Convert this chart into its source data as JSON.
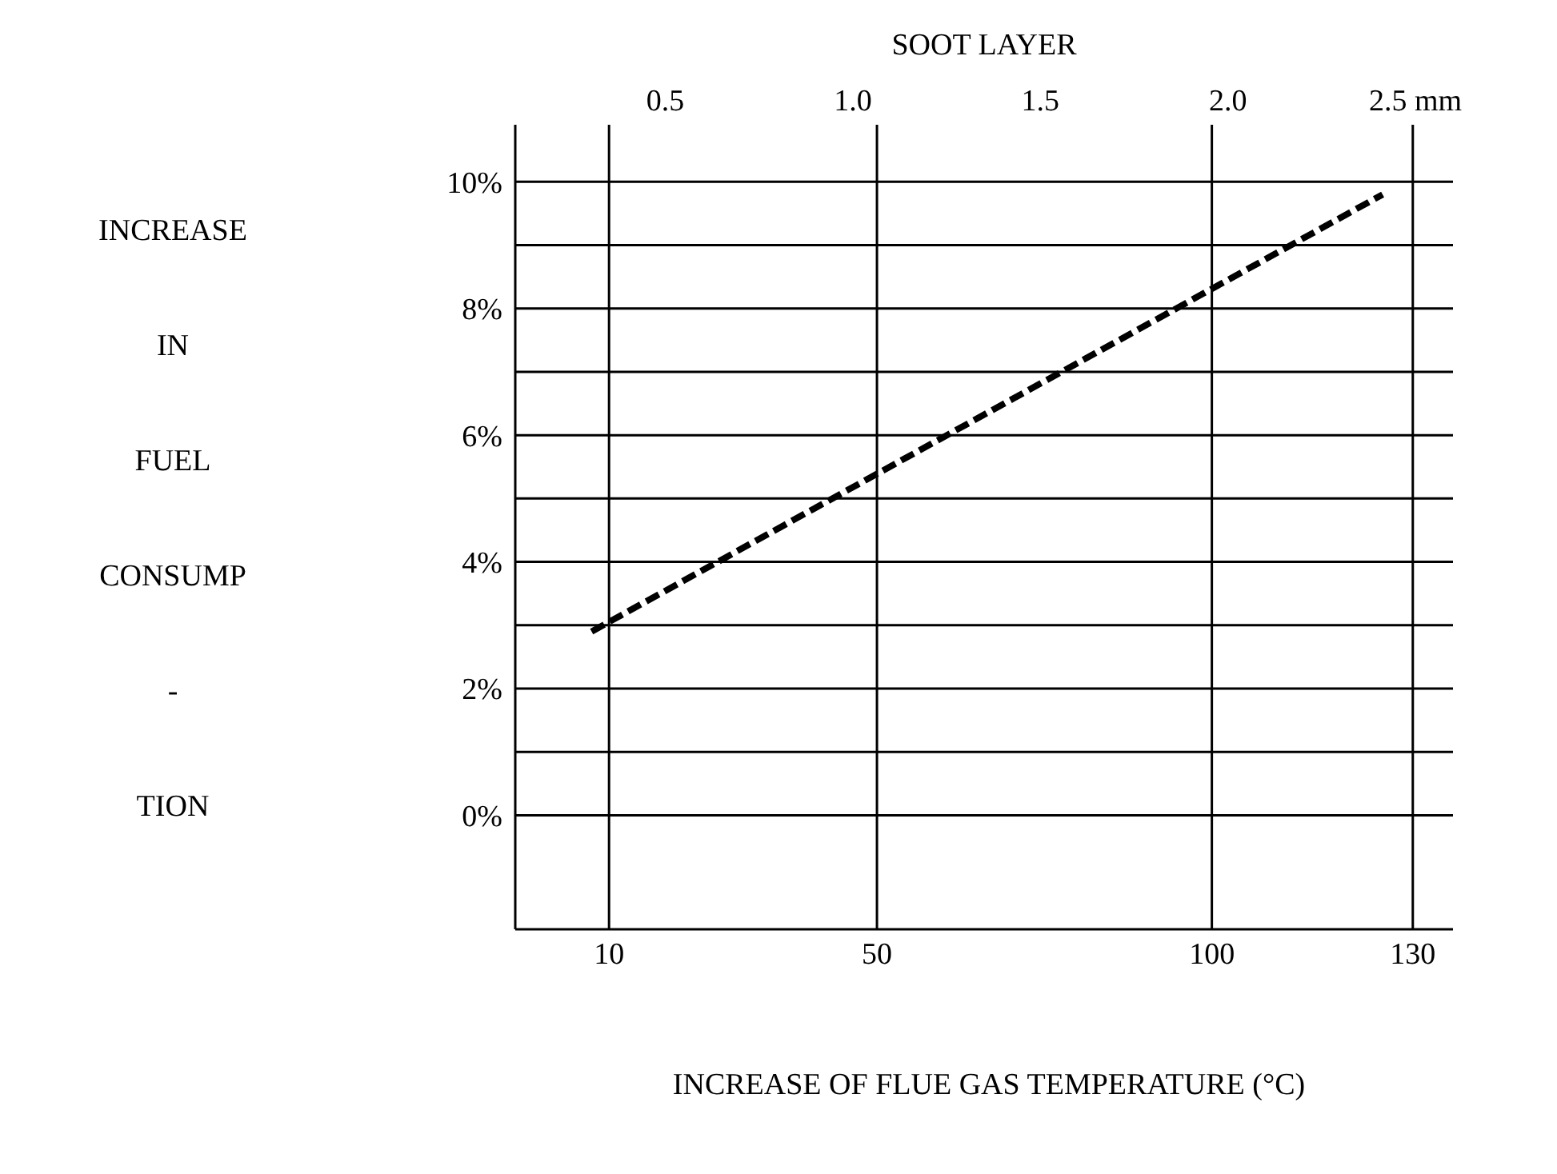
{
  "chart_data": {
    "type": "line",
    "x2label": "SOOT LAYER",
    "xlabel": "INCREASE OF FLUE GAS TEMPERATURE (°C)",
    "ylabel": "INCREASE IN FUEL CONSUMP - TION",
    "xlim": [
      -4,
      136
    ],
    "xticks": [
      10,
      50,
      100,
      130
    ],
    "x2lim": [
      0.1,
      2.6
    ],
    "x2ticks": [
      {
        "value": 0.5,
        "label": "0.5"
      },
      {
        "value": 1,
        "label": "1.0"
      },
      {
        "value": 1.5,
        "label": "1.5"
      },
      {
        "value": 2,
        "label": "2.0"
      },
      {
        "value": 2.5,
        "label": "2.5 mm"
      }
    ],
    "ylim": [
      -1.8,
      10.9
    ],
    "yticks": [
      {
        "value": 0,
        "label": "0%"
      },
      {
        "value": 1,
        "label": null
      },
      {
        "value": 2,
        "label": "2%"
      },
      {
        "value": 3,
        "label": null
      },
      {
        "value": 4,
        "label": "4%"
      },
      {
        "value": 5,
        "label": null
      },
      {
        "value": 6,
        "label": "6%"
      },
      {
        "value": 7,
        "label": null
      },
      {
        "value": 8,
        "label": "8%"
      },
      {
        "value": 9,
        "label": null
      },
      {
        "value": 10,
        "label": "10%"
      }
    ],
    "grid": true,
    "line_style": "dashed",
    "marker": "none",
    "series": [
      {
        "color": "#000000",
        "x": [
          7.4,
          125.5
        ],
        "values": [
          2.9,
          9.8
        ]
      }
    ]
  }
}
